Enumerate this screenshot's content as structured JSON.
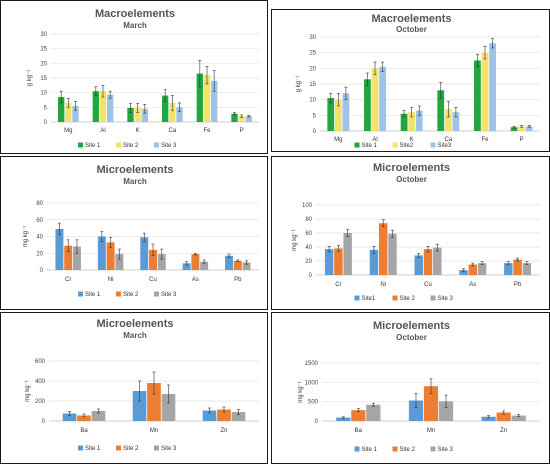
{
  "chart_data": [
    {
      "type": "bar",
      "title": "Macroelements",
      "subtitle": "March",
      "ylabel": "g kg⁻¹",
      "ylim": [
        0,
        30
      ],
      "yticks": [
        0,
        5,
        10,
        15,
        20,
        25,
        30
      ],
      "grid": true,
      "legend": "bottom",
      "categories": [
        "Mg",
        "Al",
        "K",
        "Ca",
        "Fe",
        "P"
      ],
      "series": [
        {
          "name": "Site 1",
          "color": "#22a640",
          "values": [
            8.5,
            10.5,
            4.8,
            9.0,
            16.5,
            2.8
          ],
          "errors": [
            2.0,
            1.5,
            1.5,
            2.0,
            4.5,
            0.4
          ]
        },
        {
          "name": "Site 2",
          "color": "#f3e26a",
          "values": [
            6.5,
            10.5,
            4.8,
            6.5,
            16.0,
            2.0
          ],
          "errors": [
            1.5,
            2.0,
            1.5,
            2.5,
            3.0,
            0.4
          ]
        },
        {
          "name": "Site 3",
          "color": "#9ec3e6",
          "values": [
            5.5,
            9.3,
            4.5,
            5.0,
            14.0,
            2.0
          ],
          "errors": [
            1.5,
            1.2,
            1.5,
            1.5,
            3.5,
            0.3
          ]
        }
      ]
    },
    {
      "type": "bar",
      "title": "Macroelements",
      "subtitle": "October",
      "ylabel": "g kg⁻¹",
      "ylim": [
        0,
        30
      ],
      "yticks": [
        0,
        5,
        10,
        15,
        20,
        25,
        30
      ],
      "grid": true,
      "legend": "bottom",
      "categories": [
        "Mg",
        "Al",
        "K",
        "Ca",
        "Fe",
        "P"
      ],
      "series": [
        {
          "name": "Site 1",
          "color": "#22a640",
          "values": [
            10.5,
            16.5,
            5.5,
            13.0,
            22.5,
            1.2
          ],
          "errors": [
            1.5,
            2.0,
            1.0,
            2.5,
            2.0,
            0.3
          ]
        },
        {
          "name": "Site2",
          "color": "#f3e26a",
          "values": [
            10.0,
            20.0,
            6.0,
            7.0,
            25.0,
            1.5
          ],
          "errors": [
            2.0,
            2.0,
            1.5,
            2.5,
            2.0,
            0.3
          ]
        },
        {
          "name": "Site3",
          "color": "#9ec3e6",
          "values": [
            12.0,
            20.5,
            6.5,
            6.0,
            28.0,
            1.5
          ],
          "errors": [
            2.0,
            1.5,
            1.5,
            1.5,
            1.5,
            0.3
          ]
        }
      ]
    },
    {
      "type": "bar",
      "title": "Microelements",
      "subtitle": "March",
      "ylabel": "mg kg⁻¹",
      "ylim": [
        0,
        80
      ],
      "yticks": [
        0,
        20,
        40,
        60,
        80
      ],
      "grid": true,
      "legend": "bottom",
      "categories": [
        "Cr",
        "Ni",
        "Cu",
        "As",
        "Pb"
      ],
      "series": [
        {
          "name": "Site 1",
          "color": "#5b9bd5",
          "values": [
            49,
            40,
            39,
            8,
            17
          ],
          "errors": [
            7,
            6,
            5,
            2,
            2
          ]
        },
        {
          "name": "Site 2",
          "color": "#ed7d31",
          "values": [
            29,
            33,
            24,
            19,
            11
          ],
          "errors": [
            7,
            6,
            7,
            1,
            1
          ]
        },
        {
          "name": "Site 3",
          "color": "#a5a5a5",
          "values": [
            28,
            19,
            19,
            10,
            9
          ],
          "errors": [
            8,
            6,
            6,
            2,
            2
          ]
        }
      ]
    },
    {
      "type": "bar",
      "title": "Microelements",
      "subtitle": "October",
      "ylabel": "mg kg⁻¹",
      "ylim": [
        0,
        100
      ],
      "yticks": [
        0,
        20,
        40,
        60,
        80,
        100
      ],
      "grid": true,
      "legend": "bottom",
      "categories": [
        "Cr",
        "Ni",
        "Cu",
        "As",
        "Pb"
      ],
      "series": [
        {
          "name": "Site1",
          "color": "#5b9bd5",
          "values": [
            37,
            36,
            28,
            7,
            17
          ],
          "errors": [
            4,
            5,
            3,
            2,
            2
          ]
        },
        {
          "name": "Site 2",
          "color": "#ed7d31",
          "values": [
            38,
            74,
            37,
            15,
            22
          ],
          "errors": [
            4,
            5,
            4,
            2,
            2
          ]
        },
        {
          "name": "Site 3",
          "color": "#a5a5a5",
          "values": [
            60,
            59,
            39,
            17,
            17
          ],
          "errors": [
            5,
            5,
            5,
            2,
            2
          ]
        }
      ]
    },
    {
      "type": "bar",
      "title": "Microelements",
      "subtitle": "March",
      "ylabel": "mg kg⁻¹",
      "ylim": [
        0,
        600
      ],
      "yticks": [
        0,
        200,
        400,
        600
      ],
      "grid": true,
      "legend": "bottom",
      "categories": [
        "Ba",
        "Mn",
        "Zn"
      ],
      "series": [
        {
          "name": "Site 1",
          "color": "#5b9bd5",
          "values": [
            75,
            300,
            105
          ],
          "errors": [
            20,
            100,
            25
          ]
        },
        {
          "name": "Site 2",
          "color": "#ed7d31",
          "values": [
            55,
            380,
            115
          ],
          "errors": [
            15,
            110,
            25
          ]
        },
        {
          "name": "Site 3",
          "color": "#a5a5a5",
          "values": [
            100,
            270,
            90
          ],
          "errors": [
            20,
            90,
            25
          ]
        }
      ]
    },
    {
      "type": "bar",
      "title": "Microelements",
      "subtitle": "October",
      "ylabel": "mg kg⁻¹",
      "ylim": [
        0,
        1500
      ],
      "yticks": [
        0,
        500,
        1000,
        1500
      ],
      "grid": true,
      "legend": "bottom",
      "categories": [
        "Ba",
        "Mn",
        "Zn"
      ],
      "series": [
        {
          "name": "Site 1",
          "color": "#5b9bd5",
          "values": [
            90,
            530,
            110
          ],
          "errors": [
            20,
            180,
            30
          ]
        },
        {
          "name": "Site 2",
          "color": "#ed7d31",
          "values": [
            280,
            900,
            220
          ],
          "errors": [
            40,
            190,
            40
          ]
        },
        {
          "name": "Site 3",
          "color": "#a5a5a5",
          "values": [
            420,
            510,
            140
          ],
          "errors": [
            40,
            160,
            30
          ]
        }
      ]
    }
  ]
}
